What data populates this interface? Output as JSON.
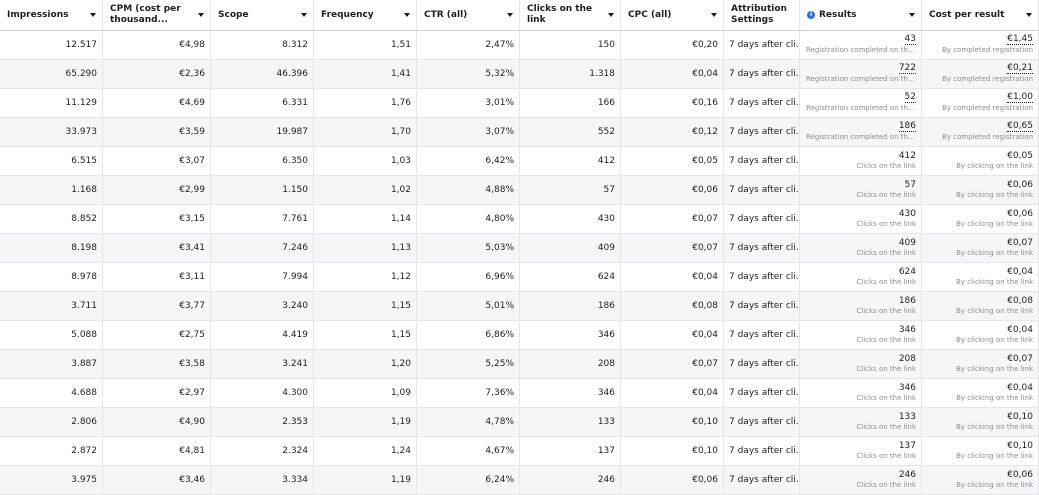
{
  "columns": [
    {
      "label": "Impressions"
    },
    {
      "label": "CPM (cost per thousand..."
    },
    {
      "label": "Scope"
    },
    {
      "label": "Frequency"
    },
    {
      "label": "CTR (all)"
    },
    {
      "label": "Clicks on the link"
    },
    {
      "label": "CPC (all)"
    },
    {
      "label": "Attribution Settings"
    },
    {
      "label": "Results"
    },
    {
      "label": "Cost per result"
    }
  ],
  "rows": [
    {
      "impressions": "12.517",
      "cpm": "€4,98",
      "scope": "8.312",
      "frequency": "1,51",
      "ctr": "2,47%",
      "clicks": "150",
      "cpc": "€0,20",
      "attribution": "7 days after cli...",
      "results": "43",
      "results_sub": "Registration completed on the...",
      "cost": "€1,45",
      "cost_sub": "By completed registration",
      "dotted": true
    },
    {
      "impressions": "65.290",
      "cpm": "€2,36",
      "scope": "46.396",
      "frequency": "1,41",
      "ctr": "5,32%",
      "clicks": "1.318",
      "cpc": "€0,04",
      "attribution": "7 days after cli...",
      "results": "722",
      "results_sub": "Registration completed on the...",
      "cost": "€0,21",
      "cost_sub": "By completed registration",
      "dotted": true
    },
    {
      "impressions": "11.129",
      "cpm": "€4,69",
      "scope": "6.331",
      "frequency": "1,76",
      "ctr": "3,01%",
      "clicks": "166",
      "cpc": "€0,16",
      "attribution": "7 days after cli...",
      "results": "52",
      "results_sub": "Registration completed on the...",
      "cost": "€1,00",
      "cost_sub": "By completed registration",
      "dotted": true
    },
    {
      "impressions": "33.973",
      "cpm": "€3,59",
      "scope": "19.987",
      "frequency": "1,70",
      "ctr": "3,07%",
      "clicks": "552",
      "cpc": "€0,12",
      "attribution": "7 days after cli...",
      "results": "186",
      "results_sub": "Registration completed on the...",
      "cost": "€0,65",
      "cost_sub": "By completed registration",
      "dotted": true
    },
    {
      "impressions": "6.515",
      "cpm": "€3,07",
      "scope": "6.350",
      "frequency": "1,03",
      "ctr": "6,42%",
      "clicks": "412",
      "cpc": "€0,05",
      "attribution": "7 days after cli...",
      "results": "412",
      "results_sub": "Clicks on the link",
      "cost": "€0,05",
      "cost_sub": "By clicking on the link",
      "dotted": false
    },
    {
      "impressions": "1.168",
      "cpm": "€2,99",
      "scope": "1.150",
      "frequency": "1,02",
      "ctr": "4,88%",
      "clicks": "57",
      "cpc": "€0,06",
      "attribution": "7 days after cli...",
      "results": "57",
      "results_sub": "Clicks on the link",
      "cost": "€0,06",
      "cost_sub": "By clicking on the link",
      "dotted": false
    },
    {
      "impressions": "8.852",
      "cpm": "€3,15",
      "scope": "7.761",
      "frequency": "1,14",
      "ctr": "4,80%",
      "clicks": "430",
      "cpc": "€0,07",
      "attribution": "7 days after cli...",
      "results": "430",
      "results_sub": "Clicks on the link",
      "cost": "€0,06",
      "cost_sub": "By clicking on the link",
      "dotted": false
    },
    {
      "impressions": "8.198",
      "cpm": "€3,41",
      "scope": "7.246",
      "frequency": "1,13",
      "ctr": "5,03%",
      "clicks": "409",
      "cpc": "€0,07",
      "attribution": "7 days after cli...",
      "results": "409",
      "results_sub": "Clicks on the link",
      "cost": "€0,07",
      "cost_sub": "By clicking on the link",
      "dotted": false
    },
    {
      "impressions": "8.978",
      "cpm": "€3,11",
      "scope": "7.994",
      "frequency": "1,12",
      "ctr": "6,96%",
      "clicks": "624",
      "cpc": "€0,04",
      "attribution": "7 days after cli...",
      "results": "624",
      "results_sub": "Clicks on the link",
      "cost": "€0,04",
      "cost_sub": "By clicking on the link",
      "dotted": false
    },
    {
      "impressions": "3.711",
      "cpm": "€3,77",
      "scope": "3.240",
      "frequency": "1,15",
      "ctr": "5,01%",
      "clicks": "186",
      "cpc": "€0,08",
      "attribution": "7 days after cli...",
      "results": "186",
      "results_sub": "Clicks on the link",
      "cost": "€0,08",
      "cost_sub": "By clicking on the link",
      "dotted": false
    },
    {
      "impressions": "5.088",
      "cpm": "€2,75",
      "scope": "4.419",
      "frequency": "1,15",
      "ctr": "6,86%",
      "clicks": "346",
      "cpc": "€0,04",
      "attribution": "7 days after cli...",
      "results": "346",
      "results_sub": "Clicks on the link",
      "cost": "€0,04",
      "cost_sub": "By clicking on the link",
      "dotted": false
    },
    {
      "impressions": "3.887",
      "cpm": "€3,58",
      "scope": "3.241",
      "frequency": "1,20",
      "ctr": "5,25%",
      "clicks": "208",
      "cpc": "€0,07",
      "attribution": "7 days after cli...",
      "results": "208",
      "results_sub": "Clicks on the link",
      "cost": "€0,07",
      "cost_sub": "By clicking on the link",
      "dotted": false
    },
    {
      "impressions": "4.688",
      "cpm": "€2,97",
      "scope": "4.300",
      "frequency": "1,09",
      "ctr": "7,36%",
      "clicks": "346",
      "cpc": "€0,04",
      "attribution": "7 days after cli...",
      "results": "346",
      "results_sub": "Clicks on the link",
      "cost": "€0,04",
      "cost_sub": "By clicking on the link",
      "dotted": false
    },
    {
      "impressions": "2.806",
      "cpm": "€4,90",
      "scope": "2.353",
      "frequency": "1,19",
      "ctr": "4,78%",
      "clicks": "133",
      "cpc": "€0,10",
      "attribution": "7 days after cli...",
      "results": "133",
      "results_sub": "Clicks on the link",
      "cost": "€0,10",
      "cost_sub": "By clicking on the link",
      "dotted": false
    },
    {
      "impressions": "2.872",
      "cpm": "€4,81",
      "scope": "2.324",
      "frequency": "1,24",
      "ctr": "4,67%",
      "clicks": "137",
      "cpc": "€0,10",
      "attribution": "7 days after cli...",
      "results": "137",
      "results_sub": "Clicks on the link",
      "cost": "€0,10",
      "cost_sub": "By clicking on the link",
      "dotted": false
    },
    {
      "impressions": "3.975",
      "cpm": "€3,46",
      "scope": "3.334",
      "frequency": "1,19",
      "ctr": "6,24%",
      "clicks": "246",
      "cpc": "€0,06",
      "attribution": "7 days after cli...",
      "results": "246",
      "results_sub": "Clicks on the link",
      "cost": "€0,06",
      "cost_sub": "By clicking on the link",
      "dotted": false
    }
  ]
}
